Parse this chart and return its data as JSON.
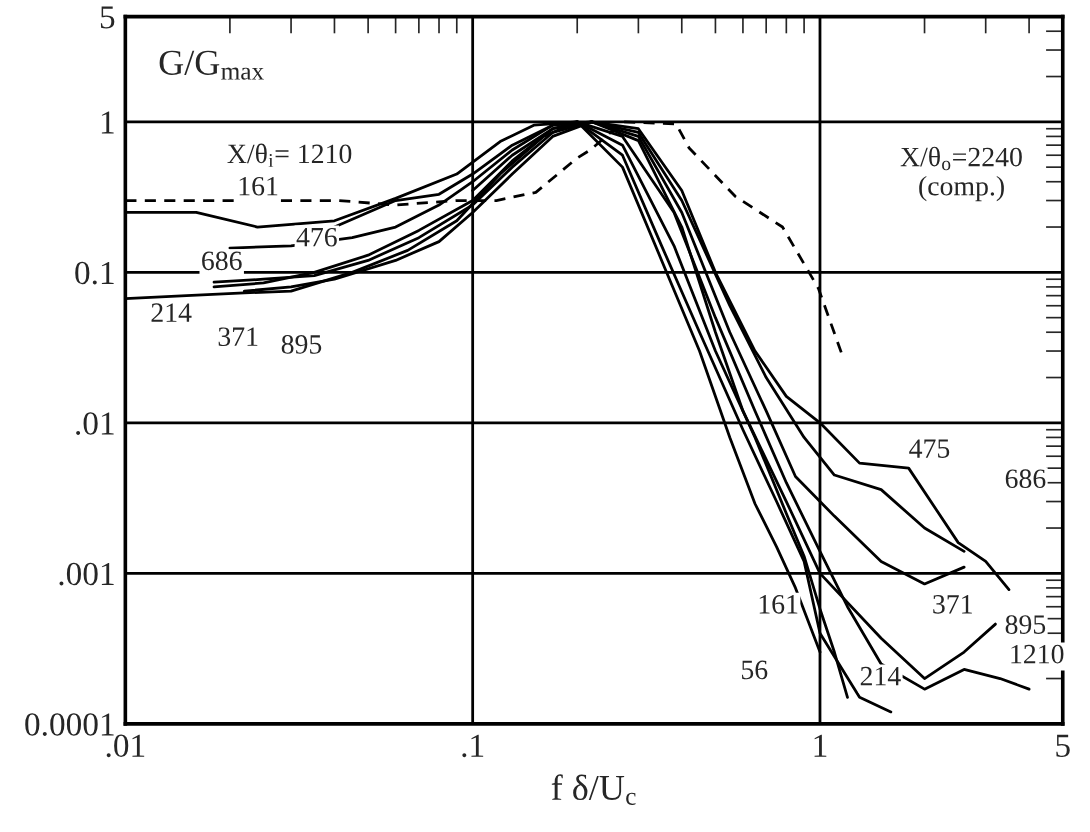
{
  "chart_data": {
    "type": "line",
    "ylabel": "G/G$_{max}$",
    "xlabel": "f δ/U$_{c}$",
    "log": "xy",
    "grid": true,
    "xlim": [
      0.01,
      5
    ],
    "ylim": [
      0.0001,
      5
    ],
    "xticks": [
      {
        "value": 0.01,
        "label": ".01"
      },
      {
        "value": 0.1,
        "label": ".1"
      },
      1,
      5
    ],
    "yticks": [
      0.0001,
      {
        "value": 0.001,
        "label": ".001"
      },
      {
        "value": 0.01,
        "label": ".01"
      },
      0.1,
      1,
      5
    ],
    "series": [
      {
        "color": "#000000",
        "line_style": "solid",
        "x": [
          0.01,
          0.016,
          0.024,
          0.04,
          0.06,
          0.09,
          0.12,
          0.15,
          0.2,
          0.27,
          0.38,
          0.5,
          0.65,
          0.8,
          0.9,
          1.0,
          1.1,
          1.2
        ],
        "values": [
          0.25,
          0.25,
          0.2,
          0.22,
          0.31,
          0.45,
          0.74,
          0.95,
          1.0,
          0.7,
          0.15,
          0.03,
          0.008,
          0.0025,
          0.0013,
          0.00058,
          0.0003,
          0.00015
        ]
      },
      {
        "color": "#000000",
        "line_style": "solid",
        "x": [
          0.04,
          0.06,
          0.08,
          0.1,
          0.13,
          0.17,
          0.2,
          0.27,
          0.38,
          0.5,
          0.65,
          0.8,
          1.0,
          1.2,
          1.5,
          2.0,
          2.6,
          3.3,
          4.0
        ],
        "values": [
          0.2,
          0.3,
          0.33,
          0.45,
          0.7,
          0.95,
          1.0,
          0.8,
          0.25,
          0.05,
          0.012,
          0.004,
          0.0014,
          0.0006,
          0.00025,
          0.00017,
          0.00023,
          0.0002,
          0.00017
        ]
      },
      {
        "color": "#000000",
        "line_style": "solid",
        "x": [
          0.02,
          0.03,
          0.045,
          0.06,
          0.08,
          0.1,
          0.13,
          0.17,
          0.22,
          0.3,
          0.4,
          0.5,
          0.65,
          0.8,
          1.0,
          1.3,
          1.8,
          2.5,
          3.0,
          3.5
        ],
        "values": [
          0.145,
          0.15,
          0.17,
          0.2,
          0.28,
          0.4,
          0.65,
          0.95,
          1.0,
          0.9,
          0.35,
          0.1,
          0.03,
          0.015,
          0.01,
          0.0054,
          0.005,
          0.0016,
          0.0012,
          0.00078
        ]
      },
      {
        "color": "#000000",
        "line_style": "solid",
        "x": [
          0.018,
          0.025,
          0.035,
          0.05,
          0.07,
          0.1,
          0.13,
          0.17,
          0.22,
          0.3,
          0.4,
          0.55,
          0.7,
          0.9,
          1.1,
          1.5,
          2.0,
          2.6
        ],
        "values": [
          0.086,
          0.09,
          0.095,
          0.12,
          0.17,
          0.28,
          0.5,
          0.85,
          1.0,
          0.85,
          0.3,
          0.06,
          0.02,
          0.008,
          0.0045,
          0.0036,
          0.002,
          0.0014
        ]
      },
      {
        "color": "#000000",
        "line_style": "solid",
        "x": [
          0.01,
          0.015,
          0.022,
          0.03,
          0.045,
          0.065,
          0.09,
          0.12,
          0.16,
          0.2,
          0.27,
          0.35,
          0.45,
          0.6,
          0.75,
          0.9,
          1.0,
          1.3,
          1.6
        ],
        "values": [
          0.067,
          0.07,
          0.073,
          0.075,
          0.1,
          0.14,
          0.22,
          0.45,
          0.8,
          1.0,
          0.6,
          0.15,
          0.04,
          0.009,
          0.003,
          0.0012,
          0.0004,
          0.00015,
          0.00012
        ]
      },
      {
        "color": "#000000",
        "line_style": "solid",
        "x": [
          0.018,
          0.025,
          0.035,
          0.05,
          0.07,
          0.1,
          0.13,
          0.17,
          0.22,
          0.3,
          0.4,
          0.55,
          0.7,
          0.85,
          1.1,
          1.5,
          2.0,
          2.6
        ],
        "values": [
          0.08,
          0.085,
          0.1,
          0.13,
          0.19,
          0.3,
          0.55,
          0.9,
          1.0,
          0.8,
          0.25,
          0.04,
          0.012,
          0.0044,
          0.0024,
          0.0012,
          0.00085,
          0.0011
        ]
      },
      {
        "color": "#000000",
        "line_style": "solid",
        "x": [
          0.022,
          0.03,
          0.04,
          0.06,
          0.08,
          0.1,
          0.13,
          0.17,
          0.22,
          0.3,
          0.4,
          0.5,
          0.6,
          0.8,
          1.0,
          1.5,
          2.0,
          2.6,
          3.2
        ],
        "values": [
          0.075,
          0.08,
          0.09,
          0.12,
          0.16,
          0.25,
          0.45,
          0.8,
          1.0,
          0.75,
          0.2,
          0.04,
          0.012,
          0.003,
          0.001,
          0.00037,
          0.0002,
          0.0003,
          0.00046
        ]
      },
      {
        "color": "#000000",
        "line_style": "solid",
        "x": [
          0.1,
          0.13,
          0.17,
          0.2,
          0.27,
          0.35,
          0.45,
          0.55,
          0.65,
          0.75,
          0.85,
          1.0
        ],
        "values": [
          0.35,
          0.6,
          0.9,
          1.0,
          0.5,
          0.12,
          0.03,
          0.008,
          0.0029,
          0.0015,
          0.0008,
          0.0003
        ]
      },
      {
        "color": "#000000",
        "line_style": "dashed",
        "x": [
          0.01,
          0.016,
          0.024,
          0.041,
          0.06,
          0.09,
          0.117,
          0.152,
          0.199,
          0.218,
          0.271,
          0.385,
          0.42,
          0.57,
          0.78,
          0.93,
          0.99,
          1.16
        ],
        "values": [
          0.3,
          0.3,
          0.3,
          0.3,
          0.28,
          0.3,
          0.3,
          0.34,
          0.57,
          0.65,
          1.0,
          0.97,
          0.67,
          0.32,
          0.2,
          0.1,
          0.078,
          0.028
        ]
      }
    ],
    "annotations": [
      "X/θ$_{i}$= 1210",
      "161",
      "476",
      "686",
      "214",
      "371",
      "895",
      "475",
      "686",
      "161",
      "371",
      "895",
      "56",
      "214",
      "1210",
      "X/θ$_{o}$=2240\n(comp.)"
    ]
  }
}
